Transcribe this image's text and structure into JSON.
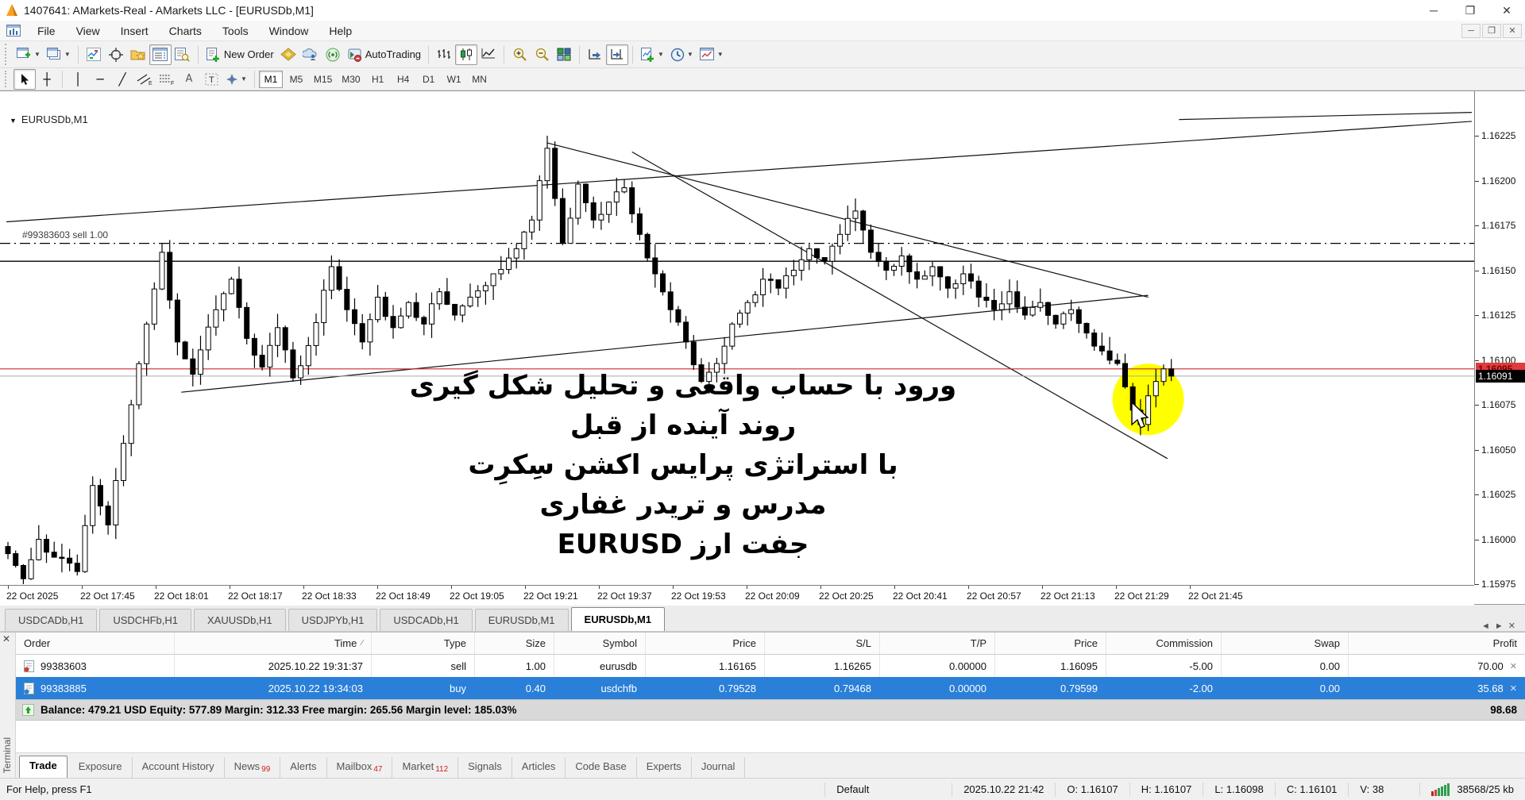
{
  "window": {
    "title": "1407641: AMarkets-Real - AMarkets LLC - [EURUSDb,M1]"
  },
  "menu": {
    "items": [
      "File",
      "View",
      "Insert",
      "Charts",
      "Tools",
      "Window",
      "Help"
    ]
  },
  "toolbar": {
    "new_order_label": "New Order",
    "autotrading_label": "AutoTrading"
  },
  "timeframes": {
    "items": [
      "M1",
      "M5",
      "M15",
      "M30",
      "H1",
      "H4",
      "D1",
      "W1",
      "MN"
    ],
    "active": "M1"
  },
  "chart_data": {
    "type": "candlestick",
    "symbol_label": "EURUSDb,M1",
    "position_label": "#99383603 sell 1.00",
    "ask_badge": "1.16095",
    "bid_badge": "1.16091",
    "y_ticks": [
      1.16225,
      1.162,
      1.16175,
      1.1615,
      1.16125,
      1.161,
      1.16075,
      1.1605,
      1.16025,
      1.16,
      1.15975
    ],
    "x_labels": [
      "22 Oct 2025",
      "22 Oct 17:45",
      "22 Oct 18:01",
      "22 Oct 18:17",
      "22 Oct 18:33",
      "22 Oct 18:49",
      "22 Oct 19:05",
      "22 Oct 19:21",
      "22 Oct 19:37",
      "22 Oct 19:53",
      "22 Oct 20:09",
      "22 Oct 20:25",
      "22 Oct 20:41",
      "22 Oct 20:57",
      "22 Oct 21:13",
      "22 Oct 21:29",
      "22 Oct 21:45"
    ],
    "num_candles": 152,
    "close_keypoints": [
      [
        0,
        1.15992
      ],
      [
        2,
        1.15978
      ],
      [
        4,
        1.16
      ],
      [
        6,
        1.1599
      ],
      [
        9,
        1.15982
      ],
      [
        11,
        1.1603
      ],
      [
        13,
        1.16008
      ],
      [
        16,
        1.16075
      ],
      [
        18,
        1.1612
      ],
      [
        20,
        1.1616
      ],
      [
        22,
        1.1611
      ],
      [
        24,
        1.16092
      ],
      [
        27,
        1.16128
      ],
      [
        29,
        1.16145
      ],
      [
        31,
        1.16112
      ],
      [
        33,
        1.16096
      ],
      [
        35,
        1.16118
      ],
      [
        37,
        1.1609
      ],
      [
        39,
        1.16108
      ],
      [
        42,
        1.16152
      ],
      [
        44,
        1.16128
      ],
      [
        46,
        1.1611
      ],
      [
        48,
        1.16135
      ],
      [
        50,
        1.16118
      ],
      [
        52,
        1.16132
      ],
      [
        54,
        1.1612
      ],
      [
        56,
        1.16138
      ],
      [
        58,
        1.16125
      ],
      [
        60,
        1.16135
      ],
      [
        63,
        1.16148
      ],
      [
        66,
        1.16162
      ],
      [
        68,
        1.16178
      ],
      [
        70,
        1.16218
      ],
      [
        71,
        1.1619
      ],
      [
        72,
        1.16165
      ],
      [
        74,
        1.16198
      ],
      [
        76,
        1.16178
      ],
      [
        78,
        1.16188
      ],
      [
        80,
        1.16196
      ],
      [
        82,
        1.1617
      ],
      [
        84,
        1.16148
      ],
      [
        86,
        1.16128
      ],
      [
        88,
        1.1611
      ],
      [
        90,
        1.16088
      ],
      [
        92,
        1.16098
      ],
      [
        94,
        1.1612
      ],
      [
        96,
        1.16132
      ],
      [
        98,
        1.16145
      ],
      [
        100,
        1.1614
      ],
      [
        102,
        1.1615
      ],
      [
        104,
        1.16162
      ],
      [
        106,
        1.16155
      ],
      [
        108,
        1.1617
      ],
      [
        110,
        1.16183
      ],
      [
        112,
        1.1616
      ],
      [
        114,
        1.1615
      ],
      [
        116,
        1.16158
      ],
      [
        118,
        1.16145
      ],
      [
        120,
        1.16152
      ],
      [
        122,
        1.1614
      ],
      [
        124,
        1.16148
      ],
      [
        126,
        1.16135
      ],
      [
        128,
        1.16128
      ],
      [
        130,
        1.16138
      ],
      [
        132,
        1.16125
      ],
      [
        134,
        1.16132
      ],
      [
        136,
        1.1612
      ],
      [
        138,
        1.16128
      ],
      [
        140,
        1.16115
      ],
      [
        142,
        1.16105
      ],
      [
        144,
        1.16098
      ],
      [
        145,
        1.16085
      ],
      [
        146,
        1.16072
      ],
      [
        147,
        1.16064
      ],
      [
        148,
        1.1608
      ],
      [
        149,
        1.16088
      ],
      [
        150,
        1.16095
      ],
      [
        151,
        1.16091
      ]
    ],
    "tall_wicks": [
      {
        "i": 70,
        "high": 1.16225
      },
      {
        "i": 110,
        "high": 1.1619
      },
      {
        "i": 147,
        "low": 1.16058
      },
      {
        "i": 2,
        "low": 1.15975
      }
    ],
    "levels": {
      "sell_open": 1.16165,
      "horizontal_line": 1.16155,
      "position_price_line": 1.16095,
      "bid_line": 1.16091
    },
    "trendlines": [
      {
        "i1": -0.2,
        "p1": 1.16177,
        "i2": 190,
        "p2": 1.16233
      },
      {
        "i1": 152,
        "p1": 1.16234,
        "i2": 190,
        "p2": 1.16238
      },
      {
        "i1": 70,
        "p1": 1.16221,
        "i2": 148,
        "p2": 1.16135
      },
      {
        "i1": 81,
        "p1": 1.16216,
        "i2": 150.5,
        "p2": 1.16045
      },
      {
        "i1": 22.5,
        "p1": 1.16082,
        "i2": 148,
        "p2": 1.16136
      }
    ],
    "highlight": {
      "i": 148,
      "price": 1.16078,
      "r": 45,
      "color": "#ffff00"
    },
    "annotations": [
      "ورود با حساب واقعی و تحلیل شکل گیری",
      "روند آینده از قبل",
      "با استراتژی پرایس اکشن سِکرِت",
      "مدرس و تریدر غفاری",
      "جفت ارز EURUSD"
    ],
    "colors": {
      "up": "#ffffff",
      "down": "#000000",
      "wick": "#000000",
      "sell_level": "#000000",
      "position_line": "#cc2a2a",
      "bid_line_gray": "#aaaaaa"
    }
  },
  "chart_tabs": {
    "items": [
      "USDCADb,H1",
      "USDCHFb,H1",
      "XAUUSDb,H1",
      "USDJPYb,H1",
      "USDCADb,H1",
      "EURUSDb,M1",
      "EURUSDb,M1"
    ],
    "active_index": 6
  },
  "terminal": {
    "panel_label": "Terminal",
    "columns": [
      "Order",
      "Time",
      "Type",
      "Size",
      "Symbol",
      "Price",
      "S/L",
      "T/P",
      "Price",
      "Commission",
      "Swap",
      "Profit"
    ],
    "orders": [
      {
        "order": "99383603",
        "time": "2025.10.22 19:31:37",
        "type": "sell",
        "size": "1.00",
        "symbol": "eurusdb",
        "price": "1.16165",
        "sl": "1.16265",
        "tp": "0.00000",
        "price2": "1.16095",
        "commission": "-5.00",
        "swap": "0.00",
        "profit": "70.00",
        "selected": false
      },
      {
        "order": "99383885",
        "time": "2025.10.22 19:34:03",
        "type": "buy",
        "size": "0.40",
        "symbol": "usdchfb",
        "price": "0.79528",
        "sl": "0.79468",
        "tp": "0.00000",
        "price2": "0.79599",
        "commission": "-2.00",
        "swap": "0.00",
        "profit": "35.68",
        "selected": true
      }
    ],
    "balance_line": "Balance: 479.21 USD  Equity: 577.89  Margin: 312.33  Free margin: 265.56  Margin level: 185.03%",
    "total_profit": "98.68",
    "bottom_tabs": [
      {
        "label": "Trade",
        "badge": "",
        "active": true
      },
      {
        "label": "Exposure",
        "badge": "",
        "active": false
      },
      {
        "label": "Account History",
        "badge": "",
        "active": false
      },
      {
        "label": "News",
        "badge": "99",
        "active": false
      },
      {
        "label": "Alerts",
        "badge": "",
        "active": false
      },
      {
        "label": "Mailbox",
        "badge": "47",
        "active": false
      },
      {
        "label": "Market",
        "badge": "112",
        "active": false
      },
      {
        "label": "Signals",
        "badge": "",
        "active": false
      },
      {
        "label": "Articles",
        "badge": "",
        "active": false
      },
      {
        "label": "Code Base",
        "badge": "",
        "active": false
      },
      {
        "label": "Experts",
        "badge": "",
        "active": false
      },
      {
        "label": "Journal",
        "badge": "",
        "active": false
      }
    ]
  },
  "status_bar": {
    "help": "For Help, press F1",
    "profile": "Default",
    "time": "2025.10.22 21:42",
    "o": "O: 1.16107",
    "h": "H: 1.16107",
    "l": "L: 1.16098",
    "c": "C: 1.16101",
    "v": "V: 38",
    "traffic": "38568/25 kb"
  }
}
